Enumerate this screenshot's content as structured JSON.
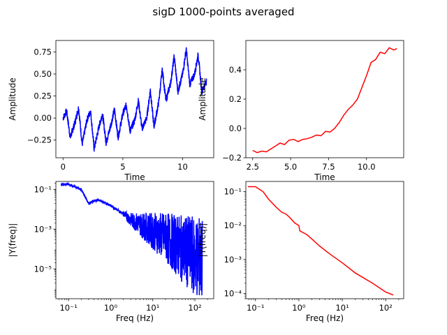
{
  "figure": {
    "suptitle": "sigD 1000-points averaged"
  },
  "chart_data": [
    {
      "id": "raw-time",
      "type": "line",
      "title": "",
      "xlabel": "Time",
      "ylabel": "Amplitude",
      "xlim": [
        -0.6,
        12.6
      ],
      "ylim": [
        -0.45,
        0.88
      ],
      "xticks": [
        0,
        5,
        10
      ],
      "yticks": [
        -0.25,
        0.0,
        0.25,
        0.5,
        0.75
      ],
      "xtick_labels": [
        "0",
        "5",
        "10"
      ],
      "ytick_labels": [
        "−0.25",
        "0.00",
        "0.25",
        "0.50",
        "0.75"
      ],
      "color": "#0000ff",
      "noise_amp": 0.04,
      "samples": 1200,
      "x_points": [
        0,
        0.3,
        0.6,
        1.0,
        1.3,
        1.6,
        2.0,
        2.3,
        2.6,
        3.0,
        3.3,
        3.6,
        4.0,
        4.3,
        4.6,
        5.0,
        5.3,
        5.6,
        6.0,
        6.3,
        6.6,
        7.0,
        7.3,
        7.6,
        8.0,
        8.3,
        8.6,
        9.0,
        9.3,
        9.6,
        10.0,
        10.3,
        10.6,
        11.0,
        11.3,
        11.6,
        12.0
      ],
      "y_points": [
        0.0,
        0.08,
        -0.22,
        -0.05,
        0.12,
        -0.3,
        -0.02,
        0.08,
        -0.35,
        -0.1,
        0.05,
        -0.28,
        -0.08,
        0.1,
        -0.22,
        0.05,
        0.15,
        -0.15,
        -0.02,
        0.2,
        -0.12,
        0.0,
        0.32,
        -0.1,
        0.18,
        0.55,
        0.2,
        0.4,
        0.7,
        0.3,
        0.5,
        0.78,
        0.38,
        0.5,
        0.72,
        0.3,
        0.42
      ]
    },
    {
      "id": "avg-time",
      "type": "line",
      "title": "",
      "xlabel": "Time",
      "ylabel": "Amplitude",
      "xlim": [
        2.05,
        12.45
      ],
      "ylim": [
        -0.2,
        0.6
      ],
      "xticks": [
        2.5,
        5.0,
        7.5,
        10.0
      ],
      "yticks": [
        -0.2,
        0.0,
        0.2,
        0.4
      ],
      "xtick_labels": [
        "2.5",
        "5.0",
        "7.5",
        "10.0"
      ],
      "ytick_labels": [
        "−0.2",
        "0.0",
        "0.2",
        "0.4"
      ],
      "color": "#ff0000",
      "x": [
        2.5,
        2.8,
        3.1,
        3.4,
        3.7,
        4.0,
        4.3,
        4.6,
        4.9,
        5.2,
        5.5,
        5.8,
        6.1,
        6.4,
        6.7,
        7.0,
        7.3,
        7.6,
        7.9,
        8.2,
        8.5,
        8.8,
        9.1,
        9.4,
        9.7,
        10.0,
        10.3,
        10.6,
        10.9,
        11.2,
        11.5,
        11.8,
        12.0
      ],
      "y": [
        -0.15,
        -0.165,
        -0.155,
        -0.16,
        -0.14,
        -0.12,
        -0.1,
        -0.11,
        -0.08,
        -0.075,
        -0.09,
        -0.075,
        -0.07,
        -0.06,
        -0.045,
        -0.05,
        -0.02,
        -0.025,
        0.0,
        0.04,
        0.09,
        0.13,
        0.16,
        0.2,
        0.28,
        0.36,
        0.45,
        0.47,
        0.52,
        0.51,
        0.55,
        0.535,
        0.545
      ]
    },
    {
      "id": "raw-freq",
      "type": "line",
      "scale": "log-log",
      "title": "",
      "xlabel": "Freq (Hz)",
      "ylabel": "|Y(freq)|",
      "xlim": [
        0.05,
        280
      ],
      "ylim": [
        3.16e-07,
        0.25
      ],
      "xticks": [
        0.1,
        1,
        10,
        100
      ],
      "yticks": [
        1e-05,
        0.001,
        0.1
      ],
      "xtick_labels": [
        "10⁻¹",
        "10⁰",
        "10¹",
        "10²"
      ],
      "ytick_labels": [
        "10⁻⁵",
        "10⁻³",
        "10⁻¹"
      ],
      "color": "#0000ff",
      "samples": 900,
      "x": [
        0.067,
        0.1,
        0.2,
        0.3,
        0.5,
        0.7,
        1.0,
        2.0,
        3.0,
        5.0,
        10.0,
        20.0,
        50.0,
        100.0,
        150.0
      ],
      "y": [
        0.18,
        0.18,
        0.1,
        0.02,
        0.03,
        0.022,
        0.015,
        0.006,
        0.003,
        0.0018,
        0.0008,
        0.0004,
        0.0001,
        4e-05,
        3e-05
      ]
    },
    {
      "id": "avg-freq",
      "type": "line",
      "scale": "log-log",
      "title": "",
      "xlabel": "Freq (Hz)",
      "ylabel": "|Y(freq)|",
      "xlim": [
        0.06,
        260
      ],
      "ylim": [
        7e-05,
        0.2
      ],
      "xticks": [
        0.1,
        1,
        10,
        100
      ],
      "yticks": [
        0.0001,
        0.001,
        0.01,
        0.1
      ],
      "xtick_labels": [
        "10⁻¹",
        "10⁰",
        "10¹",
        "10²"
      ],
      "ytick_labels": [
        "10⁻⁴",
        "10⁻³",
        "10⁻²",
        "10⁻¹"
      ],
      "color": "#ff0000",
      "x": [
        0.067,
        0.1,
        0.15,
        0.2,
        0.3,
        0.4,
        0.5,
        0.6,
        0.8,
        1.0,
        1.05,
        1.5,
        2.0,
        3.0,
        5.0,
        10.0,
        20.0,
        50.0,
        100.0,
        150.0
      ],
      "y": [
        0.14,
        0.14,
        0.1,
        0.06,
        0.035,
        0.025,
        0.022,
        0.018,
        0.012,
        0.01,
        0.007,
        0.0055,
        0.004,
        0.0025,
        0.0015,
        0.0008,
        0.0004,
        0.0002,
        0.00011,
        9e-05
      ]
    }
  ]
}
